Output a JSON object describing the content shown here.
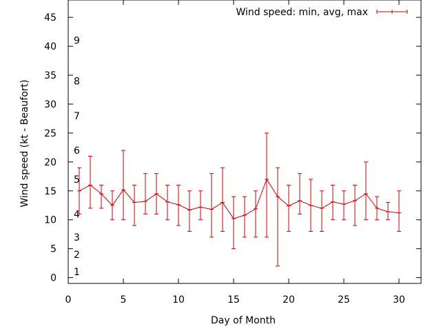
{
  "chart_data": {
    "type": "line",
    "title": "",
    "xlabel": "Day of Month",
    "ylabel": "Wind speed (kt - Beaufort)",
    "xlim": [
      0,
      32
    ],
    "ylim": [
      -1,
      48
    ],
    "xticks": [
      0,
      5,
      10,
      15,
      20,
      25,
      30
    ],
    "yticks": [
      0,
      5,
      10,
      15,
      20,
      25,
      30,
      35,
      40,
      45
    ],
    "grid": false,
    "legend": "top-right",
    "series_color": "#cc0000",
    "series": [
      {
        "name": "Wind speed: min, avg, max",
        "x": [
          1,
          2,
          3,
          4,
          5,
          6,
          7,
          8,
          9,
          10,
          11,
          12,
          13,
          14,
          15,
          16,
          17,
          18,
          19,
          20,
          21,
          22,
          23,
          24,
          25,
          26,
          27,
          28,
          29,
          30
        ],
        "avg": [
          15,
          16,
          14.5,
          12.5,
          15.2,
          13,
          13.2,
          14.5,
          13.1,
          12.6,
          11.7,
          12.2,
          11.8,
          13,
          10.2,
          10.8,
          11.9,
          17,
          14,
          12.4,
          13.3,
          12.5,
          12,
          13.1,
          12.7,
          13.3,
          14.5,
          12,
          11.4,
          11.2
        ],
        "min": [
          11,
          12,
          12,
          10,
          10,
          9,
          11,
          11,
          10,
          9,
          8,
          10,
          7,
          8,
          5,
          7,
          7,
          7,
          2,
          8,
          11,
          8,
          8,
          10,
          10,
          9,
          10,
          10,
          10,
          8
        ],
        "max": [
          19,
          21,
          16,
          15,
          22,
          16,
          18,
          18,
          16,
          16,
          15,
          15,
          18,
          19,
          14,
          14,
          15,
          25,
          19,
          16,
          18,
          17,
          15,
          16,
          15,
          16,
          20,
          14,
          13,
          15
        ]
      }
    ],
    "annotations": [
      {
        "text": "1",
        "y": 1
      },
      {
        "text": "2",
        "y": 4
      },
      {
        "text": "3",
        "y": 7
      },
      {
        "text": "4",
        "y": 11
      },
      {
        "text": "5",
        "y": 17
      },
      {
        "text": "6",
        "y": 22
      },
      {
        "text": "7",
        "y": 28
      },
      {
        "text": "8",
        "y": 34
      },
      {
        "text": "9",
        "y": 41
      }
    ]
  }
}
